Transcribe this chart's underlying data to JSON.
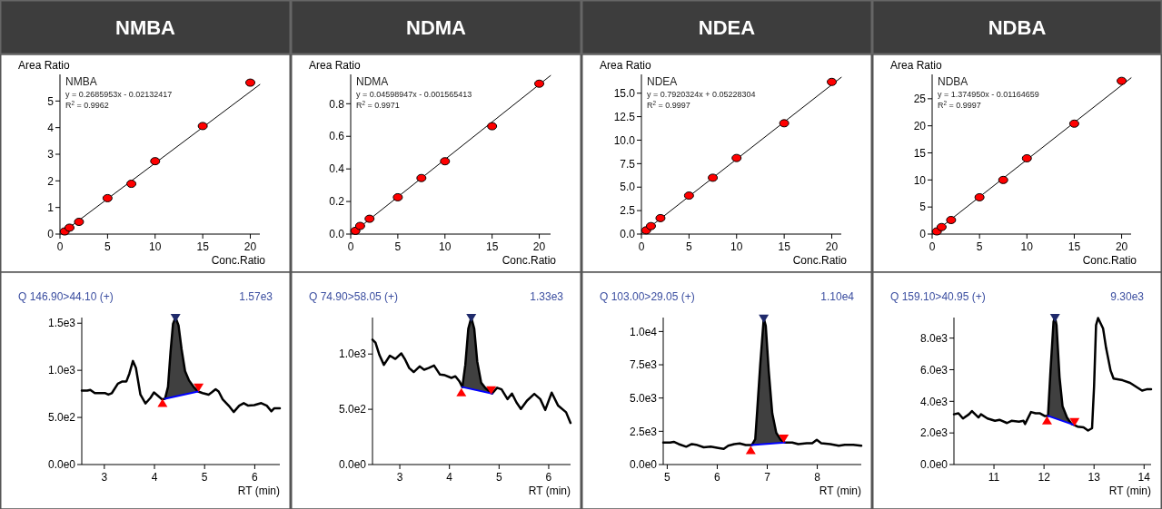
{
  "chart_data": [
    {
      "type": "scatter",
      "title": "NMBA",
      "xlabel": "Conc.Ratio",
      "ylabel": "Area Ratio",
      "annotations": [
        "NMBA",
        "y = 0.2685953x - 0.02132417",
        "R$^{2}$ = 0.9962"
      ],
      "xlim": [
        0,
        21
      ],
      "ylim": [
        0,
        6
      ],
      "xticks": [
        0,
        5,
        10,
        15,
        20
      ],
      "yticks": [
        0,
        1,
        2,
        3,
        4,
        5
      ],
      "series": [
        {
          "type": "line",
          "color": "#000000",
          "x": [
            0.1,
            21
          ],
          "values": [
            0.01,
            5.62
          ]
        },
        {
          "type": "scatter",
          "marker": "circle",
          "color": "#ff0000",
          "x": [
            0.5,
            1,
            2,
            5,
            7.5,
            10,
            15,
            20
          ],
          "values": [
            0.1,
            0.24,
            0.46,
            1.35,
            1.89,
            2.74,
            4.06,
            5.69
          ]
        }
      ]
    },
    {
      "type": "scatter",
      "title": "NDMA",
      "xlabel": "Conc.Ratio",
      "ylabel": "Area Ratio",
      "annotations": [
        "NDMA",
        "y = 0.04598947x - 0.001565413",
        "R$^{2}$ = 0.9971"
      ],
      "xlim": [
        0,
        21.2
      ],
      "ylim": [
        0,
        0.98
      ],
      "xticks": [
        0,
        5,
        10,
        15,
        20
      ],
      "yticks": [
        {
          "value": 0,
          "label": "0.0"
        },
        0.2,
        0.4,
        0.6,
        0.8
      ],
      "series": [
        {
          "type": "line",
          "color": "#000000",
          "x": [
            0.1,
            21.2
          ],
          "values": [
            0.003,
            0.973
          ]
        },
        {
          "type": "scatter",
          "marker": "circle",
          "color": "#ff0000",
          "x": [
            0.5,
            1,
            2,
            5,
            7.5,
            10,
            15,
            20
          ],
          "values": [
            0.02,
            0.05,
            0.094,
            0.226,
            0.344,
            0.447,
            0.662,
            0.923
          ]
        }
      ]
    },
    {
      "type": "scatter",
      "title": "NDEA",
      "xlabel": "Conc.Ratio",
      "ylabel": "Area Ratio",
      "annotations": [
        "NDEA",
        "y = 0.7920324x + 0.05228304",
        "R$^{2}$ = 0.9997"
      ],
      "xlim": [
        0,
        21
      ],
      "ylim": [
        0,
        17
      ],
      "xticks": [
        0,
        5,
        10,
        15,
        20
      ],
      "yticks": [
        {
          "value": 0,
          "label": "0.0"
        },
        2.5,
        {
          "value": 5,
          "label": "5.0"
        },
        7.5,
        {
          "value": 10,
          "label": "10.0"
        },
        12.5,
        {
          "value": 15,
          "label": "15.0"
        }
      ],
      "series": [
        {
          "type": "line",
          "color": "#000000",
          "x": [
            0,
            21
          ],
          "values": [
            0.05,
            16.69
          ]
        },
        {
          "type": "scatter",
          "marker": "circle",
          "color": "#ff0000",
          "x": [
            0.5,
            1,
            2,
            5,
            7.5,
            10,
            15,
            20
          ],
          "values": [
            0.4,
            0.85,
            1.7,
            4.1,
            6.0,
            8.1,
            11.8,
            16.2
          ]
        }
      ]
    },
    {
      "type": "scatter",
      "title": "NDBA",
      "xlabel": "Conc.Ratio",
      "ylabel": "Area Ratio",
      "annotations": [
        "NDBA",
        "y = 1.374950x - 0.01164659",
        "R$^{2}$ = 0.9997"
      ],
      "xlim": [
        0,
        21
      ],
      "ylim": [
        0,
        29.5
      ],
      "xticks": [
        0,
        5,
        10,
        15,
        20
      ],
      "yticks": [
        0,
        5,
        10,
        15,
        20,
        25
      ],
      "series": [
        {
          "type": "line",
          "color": "#000000",
          "x": [
            0.1,
            21
          ],
          "values": [
            0.13,
            28.86
          ]
        },
        {
          "type": "scatter",
          "marker": "circle",
          "color": "#ff0000",
          "x": [
            0.5,
            1,
            2,
            5,
            7.5,
            10,
            15,
            20
          ],
          "values": [
            0.5,
            1.3,
            2.6,
            6.8,
            10.0,
            14.0,
            20.4,
            28.3
          ]
        }
      ]
    },
    {
      "type": "line",
      "title": "Q 146.90>44.10 (+)",
      "xlabel": "RT (min)",
      "annotations": [
        "1.57e3"
      ],
      "xlim": [
        2.55,
        6.5
      ],
      "ylim": [
        0,
        1560
      ],
      "xticks": [
        3,
        4,
        5,
        6
      ],
      "yticks": [
        {
          "value": 0,
          "label": "0.0e0"
        },
        {
          "value": 500,
          "label": "5.0e2"
        },
        {
          "value": 1000,
          "label": "1.0e3"
        },
        {
          "value": 1500,
          "label": "1.5e3"
        }
      ],
      "series": [
        {
          "type": "line",
          "color": "#000000",
          "x": [
            2.55,
            2.66,
            2.72,
            2.81,
            3.02,
            3.08,
            3.15,
            3.27,
            3.36,
            3.44,
            3.5,
            3.57,
            3.63,
            3.72,
            3.82,
            3.92,
            3.99,
            4.08,
            4.15,
            4.21,
            4.27,
            4.32,
            4.37,
            4.42,
            4.48,
            4.54,
            4.61,
            4.69,
            4.78,
            4.87,
            4.96,
            5.08,
            5.14,
            5.22,
            5.28,
            5.36,
            5.48,
            5.58,
            5.69,
            5.78,
            5.87,
            5.99,
            6.13,
            6.24,
            6.33,
            6.39,
            6.5
          ],
          "values": [
            785,
            785,
            792,
            758,
            758,
            742,
            758,
            859,
            882,
            882,
            966,
            1099,
            1026,
            742,
            648,
            708,
            765,
            725,
            692,
            698,
            825,
            1193,
            1493,
            1560,
            1477,
            1226,
            992,
            892,
            825,
            775,
            758,
            742,
            765,
            799,
            775,
            692,
            625,
            558,
            625,
            652,
            625,
            631,
            652,
            625,
            565,
            598,
            598
          ],
          "lower": [
            null,
            null,
            null,
            null,
            null,
            null,
            null,
            null,
            null,
            null,
            null,
            null,
            null,
            null,
            null,
            null,
            null,
            null,
            null,
            698,
            705,
            711,
            717,
            723,
            730,
            737,
            745,
            754,
            764,
            775,
            null,
            null,
            null,
            null,
            null,
            null,
            null,
            null,
            null,
            null,
            null,
            null,
            null,
            null,
            null,
            null,
            null
          ],
          "upper": [
            null,
            null,
            null,
            null,
            null,
            null,
            null,
            null,
            null,
            null,
            null,
            null,
            null,
            null,
            null,
            null,
            null,
            null,
            null,
            698,
            825,
            1193,
            1493,
            1560,
            1477,
            1226,
            992,
            892,
            825,
            775,
            null,
            null,
            null,
            null,
            null,
            null,
            null,
            null,
            null,
            null,
            null,
            null,
            null,
            null,
            null,
            null,
            null
          ]
        },
        {
          "type": "line",
          "color": "#0000ff",
          "x": [
            4.21,
            4.87
          ],
          "values": [
            698,
            775
          ]
        },
        {
          "type": "scatter",
          "marker": "triangle",
          "color": "#ff0000",
          "x": [
            4.16
          ],
          "values": [
            650
          ]
        },
        {
          "type": "scatter",
          "marker": "triangle",
          "color": "#ff0000",
          "x": [
            4.88
          ],
          "values": [
            820
          ]
        },
        {
          "type": "scatter",
          "marker": "triangle",
          "color": "#1f2a6b",
          "x": [
            4.42
          ],
          "values": [
            1560
          ]
        }
      ]
    },
    {
      "type": "line",
      "title": "Q 74.90>58.05 (+)",
      "xlabel": "RT (min)",
      "annotations": [
        "1.33e3"
      ],
      "xlim": [
        2.45,
        6.44
      ],
      "ylim": [
        0,
        1330
      ],
      "xticks": [
        3,
        4,
        5,
        6
      ],
      "yticks": [
        {
          "value": 0,
          "label": "0.0e0"
        },
        {
          "value": 500,
          "label": "5.0e2"
        },
        {
          "value": 1000,
          "label": "1.0e3"
        }
      ],
      "series": [
        {
          "type": "line",
          "color": "#000000",
          "x": [
            2.45,
            2.51,
            2.59,
            2.68,
            2.8,
            2.91,
            3.03,
            3.1,
            3.19,
            3.28,
            3.4,
            3.49,
            3.58,
            3.69,
            3.81,
            3.91,
            4.04,
            4.12,
            4.2,
            4.26,
            4.32,
            4.38,
            4.44,
            4.5,
            4.56,
            4.64,
            4.73,
            4.86,
            4.96,
            5.05,
            5.17,
            5.26,
            5.35,
            5.44,
            5.56,
            5.71,
            5.83,
            5.93,
            6.06,
            6.19,
            6.35,
            6.44
          ],
          "values": [
            1130,
            1104,
            991,
            902,
            985,
            956,
            1006,
            956,
            873,
            837,
            888,
            858,
            873,
            896,
            814,
            808,
            784,
            799,
            754,
            701,
            902,
            1228,
            1330,
            1228,
            932,
            740,
            689,
            642,
            695,
            680,
            592,
            642,
            562,
            503,
            577,
            639,
            592,
            494,
            651,
            533,
            473,
            376
          ],
          "lower": [
            null,
            null,
            null,
            null,
            null,
            null,
            null,
            null,
            null,
            null,
            null,
            null,
            null,
            null,
            null,
            null,
            null,
            null,
            null,
            701,
            695,
            689,
            683,
            677,
            671,
            663,
            654,
            642,
            null,
            null,
            null,
            null,
            null,
            null,
            null,
            null,
            null,
            null,
            null,
            null,
            null,
            null
          ],
          "upper": [
            null,
            null,
            null,
            null,
            null,
            null,
            null,
            null,
            null,
            null,
            null,
            null,
            null,
            null,
            null,
            null,
            null,
            null,
            null,
            701,
            902,
            1228,
            1330,
            1228,
            932,
            740,
            689,
            642,
            null,
            null,
            null,
            null,
            null,
            null,
            null,
            null,
            null,
            null,
            null,
            null,
            null,
            null
          ]
        },
        {
          "type": "line",
          "color": "#0000ff",
          "x": [
            4.26,
            4.86
          ],
          "values": [
            701,
            642
          ]
        },
        {
          "type": "scatter",
          "marker": "triangle",
          "color": "#ff0000",
          "x": [
            4.24
          ],
          "values": [
            650
          ]
        },
        {
          "type": "scatter",
          "marker": "triangle",
          "color": "#ff0000",
          "x": [
            4.84
          ],
          "values": [
            675
          ]
        },
        {
          "type": "scatter",
          "marker": "triangle",
          "color": "#1f2a6b",
          "x": [
            4.44
          ],
          "values": [
            1330
          ]
        }
      ]
    },
    {
      "type": "line",
      "title": "Q 103.00>29.05 (+)",
      "xlabel": "RT (min)",
      "annotations": [
        "1.10e4"
      ],
      "xlim": [
        4.92,
        8.88
      ],
      "ylim": [
        0,
        11050
      ],
      "xticks": [
        5,
        6,
        7,
        8
      ],
      "yticks": [
        {
          "value": 0,
          "label": "0.0e0"
        },
        {
          "value": 2500,
          "label": "2.5e3"
        },
        {
          "value": 5000,
          "label": "5.0e3"
        },
        {
          "value": 7500,
          "label": "7.5e3"
        },
        {
          "value": 10000,
          "label": "1.0e4"
        }
      ],
      "series": [
        {
          "type": "line",
          "color": "#000000",
          "x": [
            4.92,
            5.06,
            5.13,
            5.23,
            5.38,
            5.49,
            5.58,
            5.73,
            5.87,
            6.02,
            6.13,
            6.22,
            6.34,
            6.45,
            6.57,
            6.69,
            6.76,
            6.8,
            6.86,
            6.93,
            6.97,
            7.03,
            7.1,
            7.18,
            7.27,
            7.35,
            7.5,
            7.62,
            7.79,
            7.9,
            7.99,
            8.08,
            8.26,
            8.43,
            8.55,
            8.72,
            8.88
          ],
          "values": [
            1659,
            1659,
            1707,
            1537,
            1341,
            1537,
            1488,
            1293,
            1341,
            1244,
            1171,
            1415,
            1537,
            1585,
            1463,
            1463,
            1902,
            4098,
            7512,
            11000,
            10439,
            7024,
            3854,
            2390,
            1854,
            1659,
            1659,
            1537,
            1610,
            1610,
            1854,
            1610,
            1537,
            1415,
            1488,
            1488,
            1415
          ],
          "lower": [
            null,
            null,
            null,
            null,
            null,
            null,
            null,
            null,
            null,
            null,
            null,
            null,
            null,
            null,
            null,
            1463,
            1484,
            1496,
            1514,
            1535,
            1547,
            1565,
            1585,
            1609,
            1636,
            1659,
            null,
            null,
            null,
            null,
            null,
            null,
            null,
            null,
            null,
            null,
            null
          ],
          "upper": [
            null,
            null,
            null,
            null,
            null,
            null,
            null,
            null,
            null,
            null,
            null,
            null,
            null,
            null,
            null,
            1463,
            1902,
            4098,
            7512,
            11000,
            10439,
            7024,
            3854,
            2390,
            1854,
            1659,
            null,
            null,
            null,
            null,
            null,
            null,
            null,
            null,
            null,
            null,
            null
          ]
        },
        {
          "type": "line",
          "color": "#0000ff",
          "x": [
            6.69,
            7.35
          ],
          "values": [
            1463,
            1659
          ]
        },
        {
          "type": "scatter",
          "marker": "triangle",
          "color": "#ff0000",
          "x": [
            6.67
          ],
          "values": [
            1050
          ]
        },
        {
          "type": "scatter",
          "marker": "triangle",
          "color": "#ff0000",
          "x": [
            7.33
          ],
          "values": [
            1980
          ]
        },
        {
          "type": "scatter",
          "marker": "triangle",
          "color": "#1f2a6b",
          "x": [
            6.93
          ],
          "values": [
            11000
          ]
        }
      ]
    },
    {
      "type": "line",
      "title": "Q 159.10>40.95 (+)",
      "xlabel": "RT (min)",
      "annotations": [
        "9.30e3"
      ],
      "xlim": [
        10.2,
        14.14
      ],
      "ylim": [
        0,
        9300
      ],
      "xticks": [
        11,
        12,
        13,
        14
      ],
      "yticks": [
        {
          "value": 0,
          "label": "0.0e0"
        },
        {
          "value": 2000,
          "label": "2.0e3"
        },
        {
          "value": 4000,
          "label": "4.0e3"
        },
        {
          "value": 6000,
          "label": "6.0e3"
        },
        {
          "value": 8000,
          "label": "8.0e3"
        }
      ],
      "series": [
        {
          "type": "line",
          "color": "#000000",
          "x": [
            10.2,
            10.29,
            10.38,
            10.5,
            10.56,
            10.69,
            10.74,
            10.87,
            11.02,
            11.11,
            11.26,
            11.35,
            11.5,
            11.59,
            11.62,
            11.74,
            11.83,
            11.92,
            12.01,
            12.08,
            12.13,
            12.19,
            12.22,
            12.25,
            12.31,
            12.37,
            12.46,
            12.55,
            12.59,
            12.67,
            12.79,
            12.88,
            12.96,
            13.0,
            13.04,
            13.08,
            13.18,
            13.24,
            13.33,
            13.39,
            13.57,
            13.72,
            13.84,
            13.96,
            14.05,
            14.14
          ],
          "values": [
            3180,
            3241,
            2913,
            3180,
            3385,
            2974,
            3180,
            2913,
            2769,
            2831,
            2626,
            2769,
            2708,
            2769,
            2564,
            3323,
            3241,
            3241,
            3077,
            3077,
            5949,
            9026,
            9300,
            8821,
            5538,
            3692,
            2974,
            2564,
            2520,
            2400,
            2359,
            2154,
            2297,
            4923,
            8821,
            9270,
            8615,
            7385,
            5949,
            5436,
            5333,
            5169,
            4923,
            4677,
            4759,
            4759
          ],
          "lower": [
            null,
            null,
            null,
            null,
            null,
            null,
            null,
            null,
            null,
            null,
            null,
            null,
            null,
            null,
            null,
            null,
            null,
            null,
            null,
            3077,
            3022,
            2957,
            2924,
            2891,
            2826,
            2760,
            2662,
            2564,
            2520,
            null,
            null,
            null,
            null,
            null,
            null,
            null,
            null,
            null,
            null,
            null,
            null,
            null,
            null,
            null,
            null,
            null
          ],
          "upper": [
            null,
            null,
            null,
            null,
            null,
            null,
            null,
            null,
            null,
            null,
            null,
            null,
            null,
            null,
            null,
            null,
            null,
            null,
            null,
            3077,
            5949,
            9026,
            9300,
            8821,
            5538,
            3692,
            2974,
            2564,
            2520,
            null,
            null,
            null,
            null,
            null,
            null,
            null,
            null,
            null,
            null,
            null,
            null,
            null,
            null,
            null,
            null,
            null
          ]
        },
        {
          "type": "line",
          "color": "#0000ff",
          "x": [
            12.08,
            12.59
          ],
          "values": [
            3077,
            2520
          ]
        },
        {
          "type": "scatter",
          "marker": "triangle",
          "color": "#ff0000",
          "x": [
            12.06
          ],
          "values": [
            2770
          ]
        },
        {
          "type": "scatter",
          "marker": "triangle",
          "color": "#ff0000",
          "x": [
            12.61
          ],
          "values": [
            2710
          ]
        },
        {
          "type": "scatter",
          "marker": "triangle",
          "color": "#1f2a6b",
          "x": [
            12.22
          ],
          "values": [
            9300
          ]
        }
      ]
    }
  ]
}
